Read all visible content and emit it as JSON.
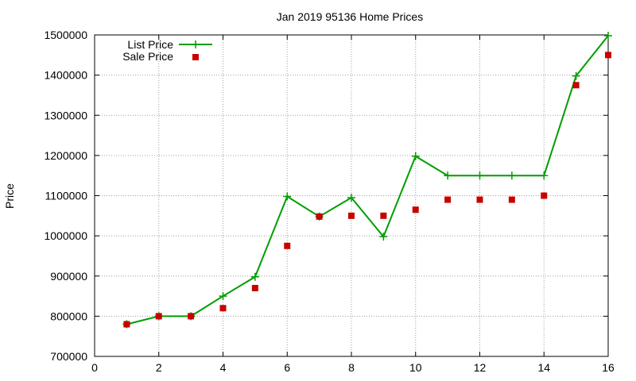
{
  "chart_data": {
    "type": "line",
    "title": "Jan 2019 95136 Home Prices",
    "xlabel": "",
    "ylabel": "Price",
    "xlim": [
      0,
      16
    ],
    "ylim": [
      700000,
      1500000
    ],
    "xticks": [
      0,
      2,
      4,
      6,
      8,
      10,
      12,
      14,
      16
    ],
    "yticks": [
      700000,
      800000,
      900000,
      1000000,
      1100000,
      1200000,
      1300000,
      1400000,
      1500000
    ],
    "grid": true,
    "legend_position": "top-left",
    "series": [
      {
        "name": "List Price",
        "style": "line-with-plus-markers",
        "color": "#009e00",
        "x": [
          1,
          2,
          3,
          4,
          5,
          6,
          7,
          8,
          9,
          10,
          11,
          12,
          13,
          14,
          15,
          16
        ],
        "y": [
          780000,
          800000,
          800000,
          850000,
          898000,
          1098000,
          1048000,
          1095000,
          998000,
          1198000,
          1150000,
          1150000,
          1150000,
          1150000,
          1398000,
          1498000
        ]
      },
      {
        "name": "Sale Price",
        "style": "square-points",
        "color": "#c80000",
        "x": [
          1,
          2,
          3,
          4,
          5,
          6,
          7,
          8,
          9,
          10,
          11,
          12,
          13,
          14,
          15,
          16
        ],
        "y": [
          780000,
          800000,
          800000,
          820000,
          870000,
          975000,
          1048000,
          1050000,
          1050000,
          1065000,
          1090000,
          1090000,
          1090000,
          1100000,
          1375000,
          1450000
        ]
      }
    ]
  }
}
